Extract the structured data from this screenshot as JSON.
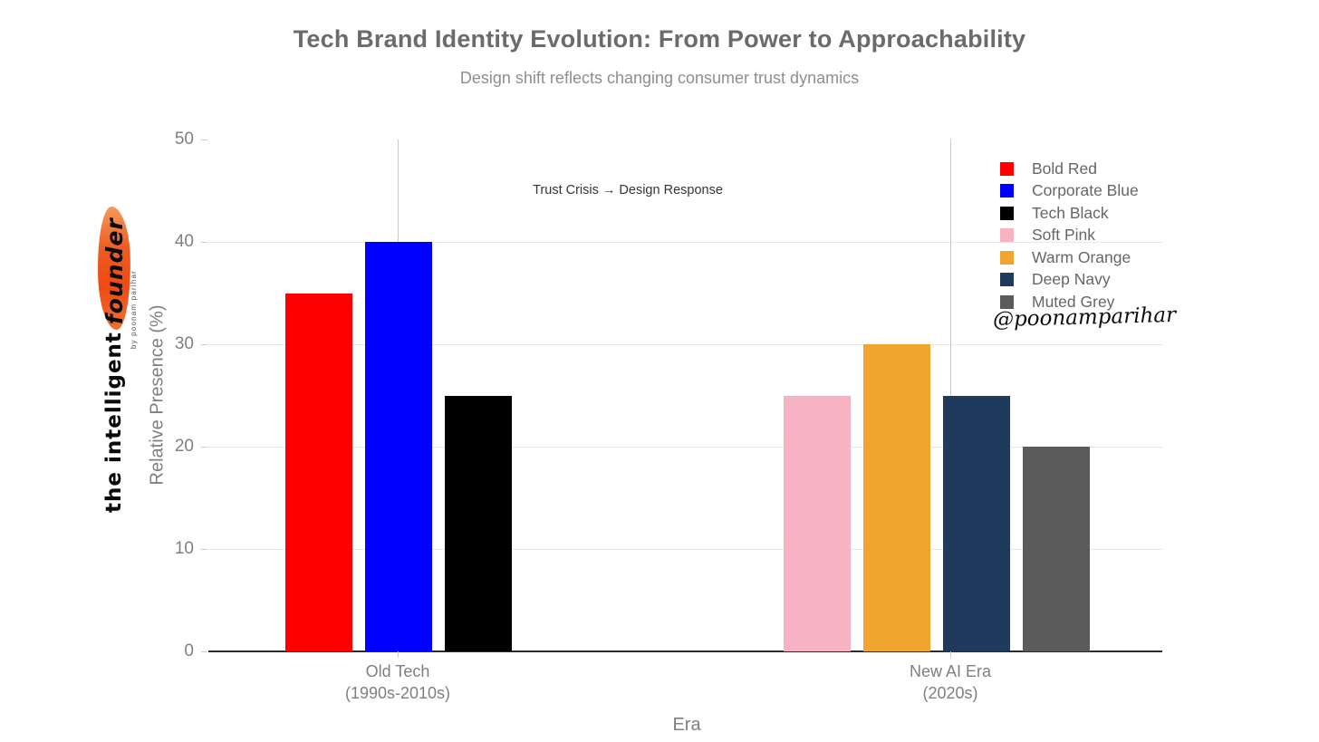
{
  "header": {
    "title": "Tech Brand Identity Evolution: From Power to Approachability",
    "subtitle": "Design shift reflects changing consumer trust dynamics"
  },
  "branding": {
    "logo_prefix": "the intelligent",
    "logo_highlight": "founder",
    "logo_byline": "by poonam parihar",
    "signature": "@poonamparihar",
    "brush_color": "#ee4a14"
  },
  "chart_data": {
    "type": "bar",
    "title": "Tech Brand Identity Evolution: From Power to Approachability",
    "subtitle": "Design shift reflects changing consumer trust dynamics",
    "xlabel": "Era",
    "ylabel": "Relative Presence (%)",
    "ylim": [
      0,
      50
    ],
    "yticks": [
      0,
      10,
      20,
      30,
      40,
      50
    ],
    "grid": true,
    "legend_position": "right",
    "categories": [
      {
        "lines": [
          "Old Tech",
          "(1990s-2010s)"
        ]
      },
      {
        "lines": [
          "New AI Era",
          "(2020s)"
        ]
      }
    ],
    "series": [
      {
        "name": "Bold Red",
        "group": 0,
        "value": 35,
        "color": "#ff0000"
      },
      {
        "name": "Corporate Blue",
        "group": 0,
        "value": 40,
        "color": "#0000ff"
      },
      {
        "name": "Tech Black",
        "group": 0,
        "value": 25,
        "color": "#000000"
      },
      {
        "name": "Soft Pink",
        "group": 1,
        "value": 25,
        "color": "#f8b3c3"
      },
      {
        "name": "Warm Orange",
        "group": 1,
        "value": 30,
        "color": "#f1a42e"
      },
      {
        "name": "Deep Navy",
        "group": 1,
        "value": 25,
        "color": "#1f3a5c"
      },
      {
        "name": "Muted Grey",
        "group": 1,
        "value": 20,
        "color": "#5b5b5b"
      }
    ],
    "annotations": [
      {
        "text": "Trust Crisis → Design Response"
      }
    ]
  }
}
